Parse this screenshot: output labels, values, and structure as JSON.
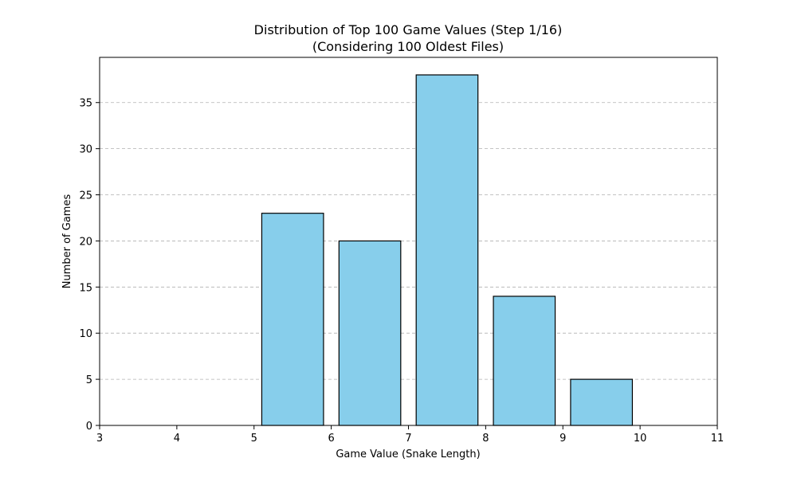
{
  "chart_data": {
    "type": "bar",
    "title": "Distribution of Top 100 Game Values (Step 1/16)",
    "subtitle": "(Considering 100 Oldest Files)",
    "xlabel": "Game Value (Snake Length)",
    "ylabel": "Number of Games",
    "x": [
      3,
      4,
      5,
      6,
      7,
      8,
      9,
      10
    ],
    "values": [
      0,
      0,
      23,
      20,
      38,
      14,
      5,
      0
    ],
    "bar_width": 0.8,
    "xlim": [
      3,
      11
    ],
    "ylim": [
      0,
      39.9
    ],
    "xticks": [
      "3",
      "4",
      "5",
      "6",
      "7",
      "8",
      "9",
      "10",
      "11"
    ],
    "yticks": [
      "0",
      "5",
      "10",
      "15",
      "20",
      "25",
      "30",
      "35"
    ],
    "grid": "y-dashed",
    "colors": {
      "bar": "#87ceeb",
      "edge": "#000000",
      "grid": "#b0b0b0"
    }
  }
}
